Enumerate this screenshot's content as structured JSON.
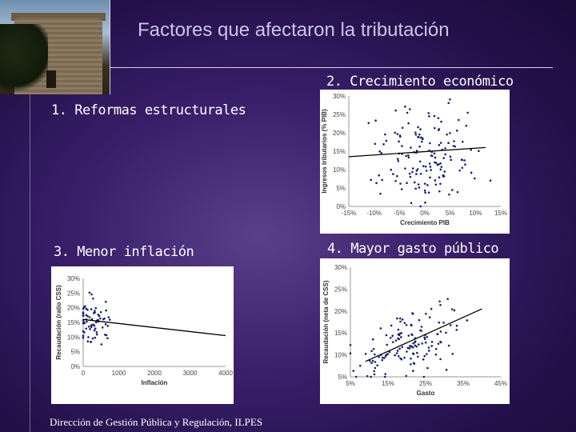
{
  "slide": {
    "title": "Factores que afectaron la tributación",
    "footer": "Dirección de Gestión Pública y Regulación, ILPES"
  },
  "labels": {
    "l1": "1. Reformas estructurales",
    "l2": "2. Crecimiento económico",
    "l3": "3. Menor inflación",
    "l4": "4. Mayor gasto público"
  },
  "chart_data": [
    {
      "type": "scatter",
      "xlabel": "Crecimiento PIB",
      "ylabel": "Ingresos tributarios    (% PIB)",
      "x_ticks": [
        "-15%",
        "-10%",
        "-5%",
        "0%",
        "5%",
        "10%",
        "15%"
      ],
      "y_ticks": [
        "0%",
        "5%",
        "10%",
        "15%",
        "20%",
        "25%",
        "30%"
      ],
      "xlim": [
        -15,
        15
      ],
      "ylim": [
        0,
        30
      ],
      "trend": [
        [
          -15,
          13.5
        ],
        [
          12,
          16
        ]
      ]
    },
    {
      "type": "scatter",
      "xlabel": "Inflación",
      "ylabel": "Recaudación   (ratio CSS)",
      "x_ticks": [
        "0",
        "1000",
        "2000",
        "3000",
        "4000"
      ],
      "y_ticks": [
        "0%",
        "5%",
        "10%",
        "15%",
        "20%",
        "25%",
        "30%"
      ],
      "xlim": [
        0,
        4000
      ],
      "ylim": [
        0,
        30
      ],
      "trend": [
        [
          0,
          16
        ],
        [
          4000,
          10.5
        ]
      ]
    },
    {
      "type": "scatter",
      "xlabel": "Gasto",
      "ylabel": "Recaudación (neta de CSS)",
      "x_ticks": [
        "5%",
        "15%",
        "25%",
        "35%",
        "45%"
      ],
      "y_ticks": [
        "5%",
        "10%",
        "15%",
        "20%",
        "25%",
        "30%"
      ],
      "xlim": [
        5,
        45
      ],
      "ylim": [
        5,
        30
      ],
      "trend": [
        [
          9,
          8.5
        ],
        [
          40,
          20.5
        ]
      ]
    }
  ]
}
